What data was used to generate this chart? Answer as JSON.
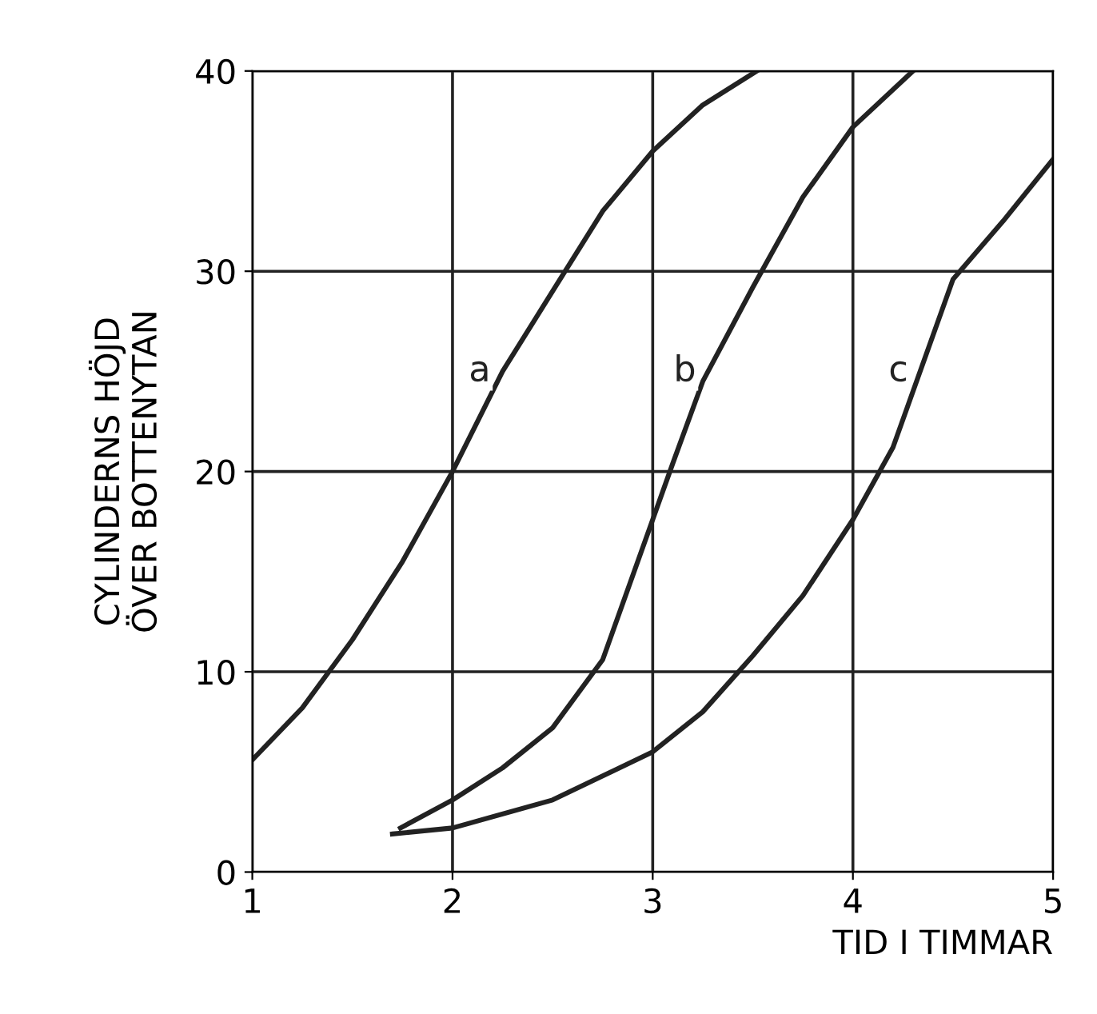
{
  "chart_data": {
    "type": "line",
    "xlabel": "TID I TIMMAR",
    "ylabel": "CYLINDERNS HÖJD\nÖVER BOTTENYTAN",
    "xlim": [
      1,
      5
    ],
    "ylim": [
      0,
      40
    ],
    "xticks": [
      1,
      2,
      3,
      4,
      5
    ],
    "yticks": [
      0,
      10,
      20,
      30,
      40
    ],
    "grid": true,
    "marker": "none",
    "line_style": "solid",
    "series": [
      {
        "name": "a",
        "color": "#222222",
        "x": [
          1,
          1.25,
          1.5,
          1.75,
          2,
          2.25,
          2.5,
          2.75,
          3,
          3.25,
          3.52
        ],
        "values": [
          5.6,
          8.2,
          11.6,
          15.5,
          20,
          25,
          29,
          33,
          36,
          38.3,
          40
        ]
      },
      {
        "name": "b",
        "color": "#222222",
        "x": [
          1.74,
          2,
          2.25,
          2.5,
          2.75,
          3,
          3.1,
          3.25,
          3.5,
          3.75,
          4,
          4.3
        ],
        "values": [
          2.2,
          3.6,
          5.2,
          7.2,
          10.6,
          17.6,
          20.4,
          24.5,
          29.2,
          33.7,
          37.2,
          40
        ]
      },
      {
        "name": "c",
        "color": "#222222",
        "x": [
          1.7,
          2,
          2.5,
          3,
          3.25,
          3.5,
          3.75,
          4,
          4.2,
          4.5,
          4.75,
          5
        ],
        "values": [
          1.9,
          2.2,
          3.6,
          6,
          8,
          10.8,
          13.8,
          17.6,
          21.2,
          29.6,
          32.5,
          35.6
        ]
      }
    ]
  }
}
